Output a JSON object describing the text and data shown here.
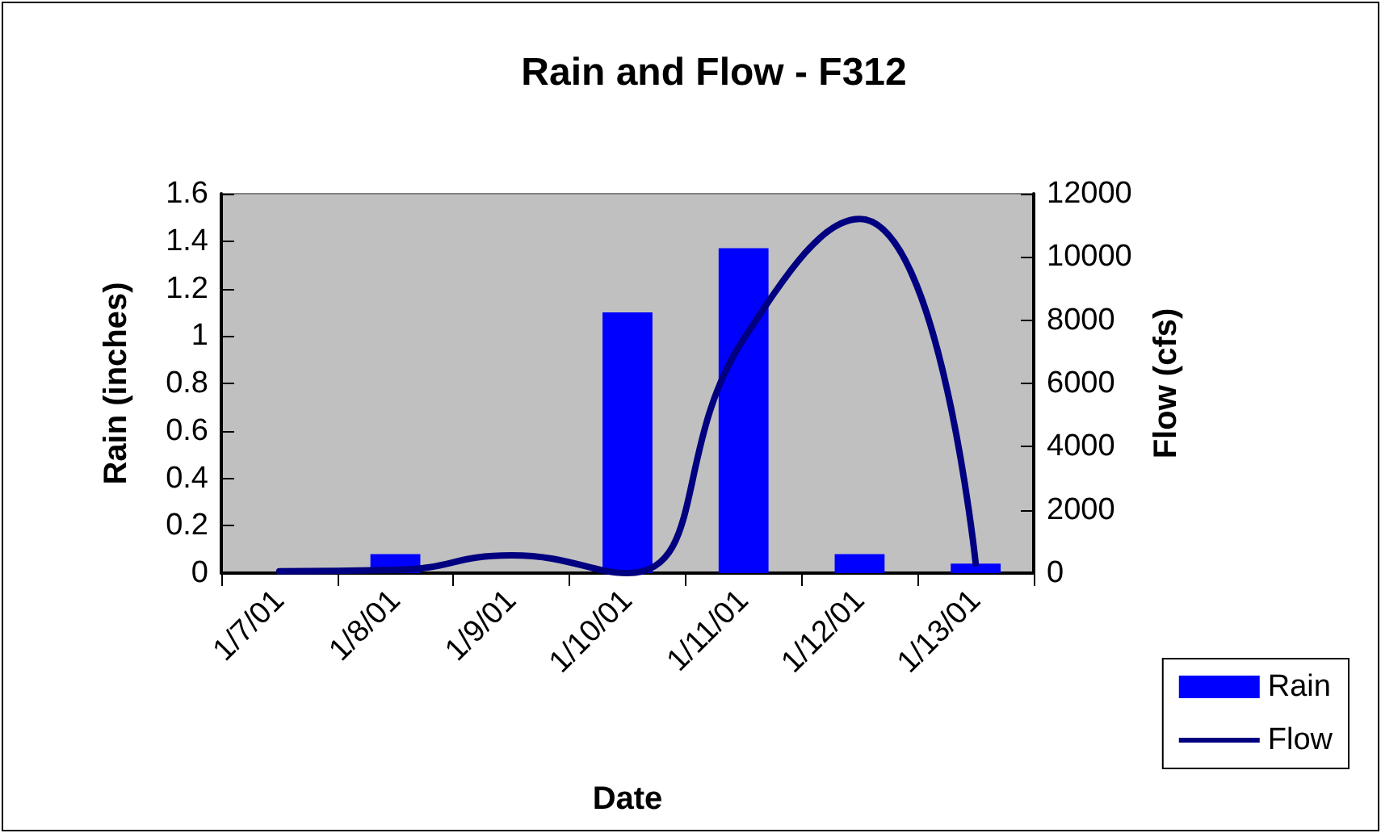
{
  "chart_data": {
    "type": "bar",
    "title": "Rain and Flow - F312",
    "xlabel": "Date",
    "ylabel": "Rain (inches)",
    "y2label": "Flow (cfs)",
    "categories": [
      "1/7/01",
      "1/8/01",
      "1/9/01",
      "1/10/01",
      "1/11/01",
      "1/12/01",
      "1/13/01"
    ],
    "series": [
      {
        "name": "Rain",
        "color": "#0000ff",
        "values": [
          0,
          0.08,
          0,
          1.1,
          1.37,
          0.08,
          0.04
        ]
      },
      {
        "name": "Flow",
        "type": "line",
        "axis": "y2",
        "color": "#000080",
        "values": [
          60,
          100,
          560,
          0,
          7400,
          11200,
          300
        ]
      }
    ],
    "ylim": [
      0,
      1.6
    ],
    "yticks": [
      0,
      0.2,
      0.4,
      0.6,
      0.8,
      1,
      1.2,
      1.4,
      1.6
    ],
    "y2lim": [
      0,
      12000
    ],
    "y2ticks": [
      0,
      2000,
      4000,
      6000,
      8000,
      10000,
      12000
    ],
    "grid": false,
    "legend": "bottom right",
    "marker": "none",
    "line_style": "solid"
  }
}
